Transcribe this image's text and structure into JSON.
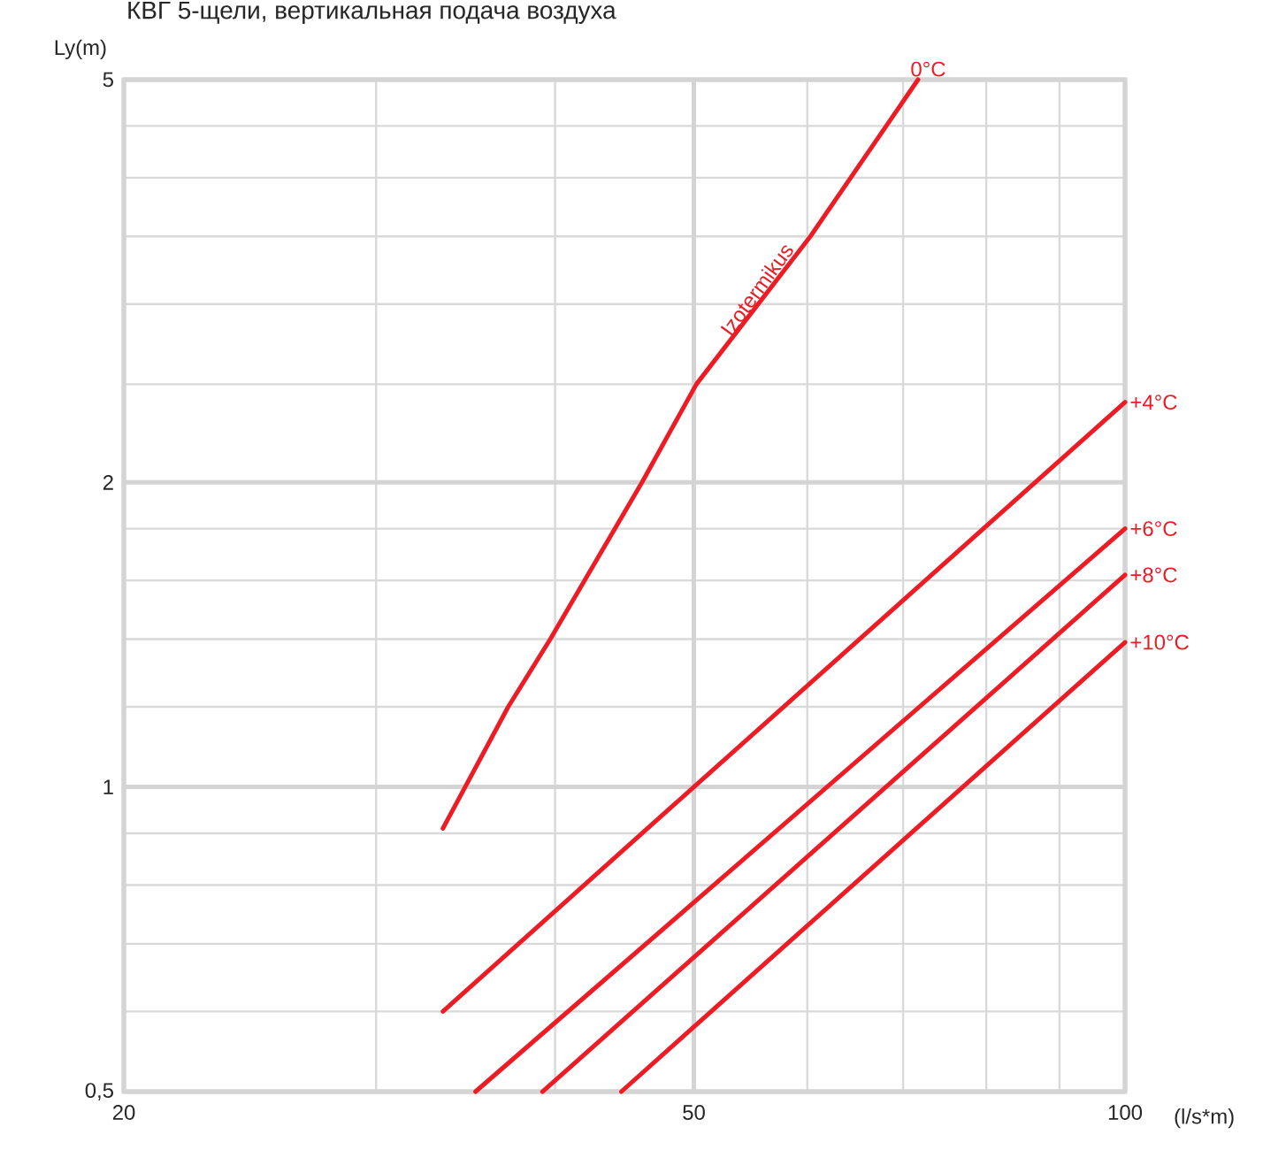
{
  "chart_data": {
    "type": "line",
    "title": "КВГ 5-щели, вертикальная подача воздуха",
    "xlabel": "(l/s*m)",
    "ylabel": "Ly(m)",
    "log": "xy",
    "grid": true,
    "marker": "none",
    "line_style": "solid",
    "xlim": [
      20,
      100
    ],
    "ylim": [
      0.5,
      5
    ],
    "xticks": [
      20,
      {
        "value": 30,
        "label": null
      },
      {
        "value": 40,
        "label": null
      },
      50,
      {
        "value": 60,
        "label": null
      },
      {
        "value": 70,
        "label": null
      },
      {
        "value": 80,
        "label": null
      },
      {
        "value": 90,
        "label": null
      },
      100
    ],
    "yticks": [
      {
        "value": 0.5,
        "label": "0,5"
      },
      {
        "value": 0.6,
        "label": null
      },
      {
        "value": 0.7,
        "label": null
      },
      {
        "value": 0.8,
        "label": null
      },
      {
        "value": 0.9,
        "label": null
      },
      1,
      {
        "value": 1.2,
        "label": null
      },
      {
        "value": 1.4,
        "label": null
      },
      {
        "value": 1.6,
        "label": null
      },
      {
        "value": 1.8,
        "label": null
      },
      2,
      {
        "value": 2.5,
        "label": null
      },
      {
        "value": 3,
        "label": null
      },
      {
        "value": 3.5,
        "label": null
      },
      {
        "value": 4,
        "label": null
      },
      {
        "value": 4.5,
        "label": null
      },
      5
    ],
    "series": [
      {
        "name": "0°C",
        "color": "#ed1c24",
        "x": [
          33.4,
          37.1,
          39.7,
          46,
          50.2,
          60.3,
          71.7
        ],
        "values": [
          0.91,
          1.2,
          1.4,
          2.0,
          2.5,
          3.5,
          5
        ]
      },
      {
        "name": "+4°C",
        "color": "#ed1c24",
        "x": [
          33.4,
          50,
          100
        ],
        "values": [
          0.6,
          1.0,
          2.4
        ]
      },
      {
        "name": "+6°C",
        "color": "#ed1c24",
        "x": [
          35.2,
          100
        ],
        "values": [
          0.5,
          1.8
        ]
      },
      {
        "name": "+8°C",
        "color": "#ed1c24",
        "x": [
          39.2,
          100
        ],
        "values": [
          0.5,
          1.62
        ]
      },
      {
        "name": "+10°C",
        "color": "#ed1c24",
        "x": [
          44.5,
          100
        ],
        "values": [
          0.5,
          1.39
        ]
      }
    ],
    "annotations": [
      {
        "text": "Izotermikus",
        "x": 57,
        "y": 3.1
      }
    ]
  }
}
